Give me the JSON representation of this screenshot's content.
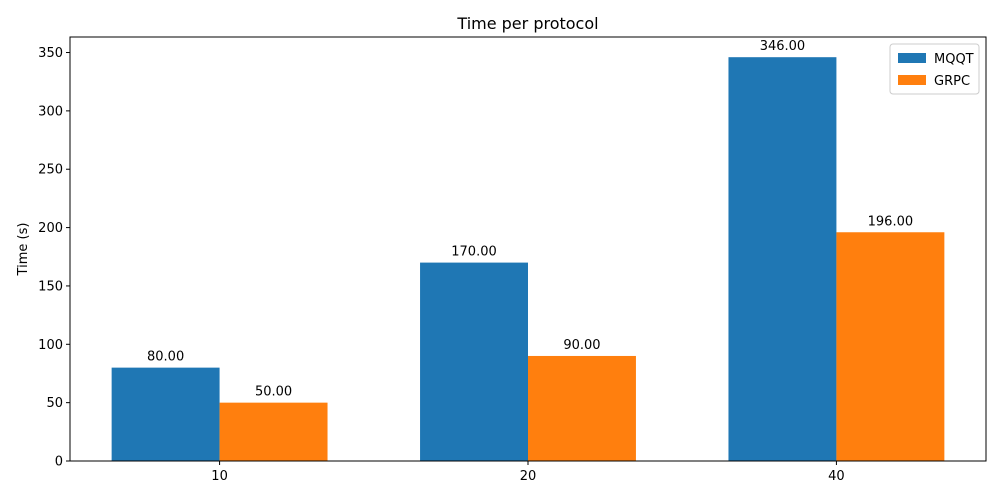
{
  "chart_data": {
    "type": "bar",
    "title": "Time per protocol",
    "xlabel": "",
    "ylabel": "Time (s)",
    "categories": [
      "10",
      "20",
      "40"
    ],
    "series": [
      {
        "name": "MQQT",
        "values": [
          80,
          170,
          346
        ],
        "labels": [
          "80.00",
          "170.00",
          "346.00"
        ],
        "color": "#1f77b4"
      },
      {
        "name": "GRPC",
        "values": [
          50,
          90,
          196
        ],
        "labels": [
          "50.00",
          "90.00",
          "196.00"
        ],
        "color": "#ff7f0e"
      }
    ],
    "ylim": [
      0,
      363.3
    ],
    "yticks": [
      0,
      50,
      100,
      150,
      200,
      250,
      300,
      350
    ],
    "grid": false,
    "legend": "top-right"
  }
}
